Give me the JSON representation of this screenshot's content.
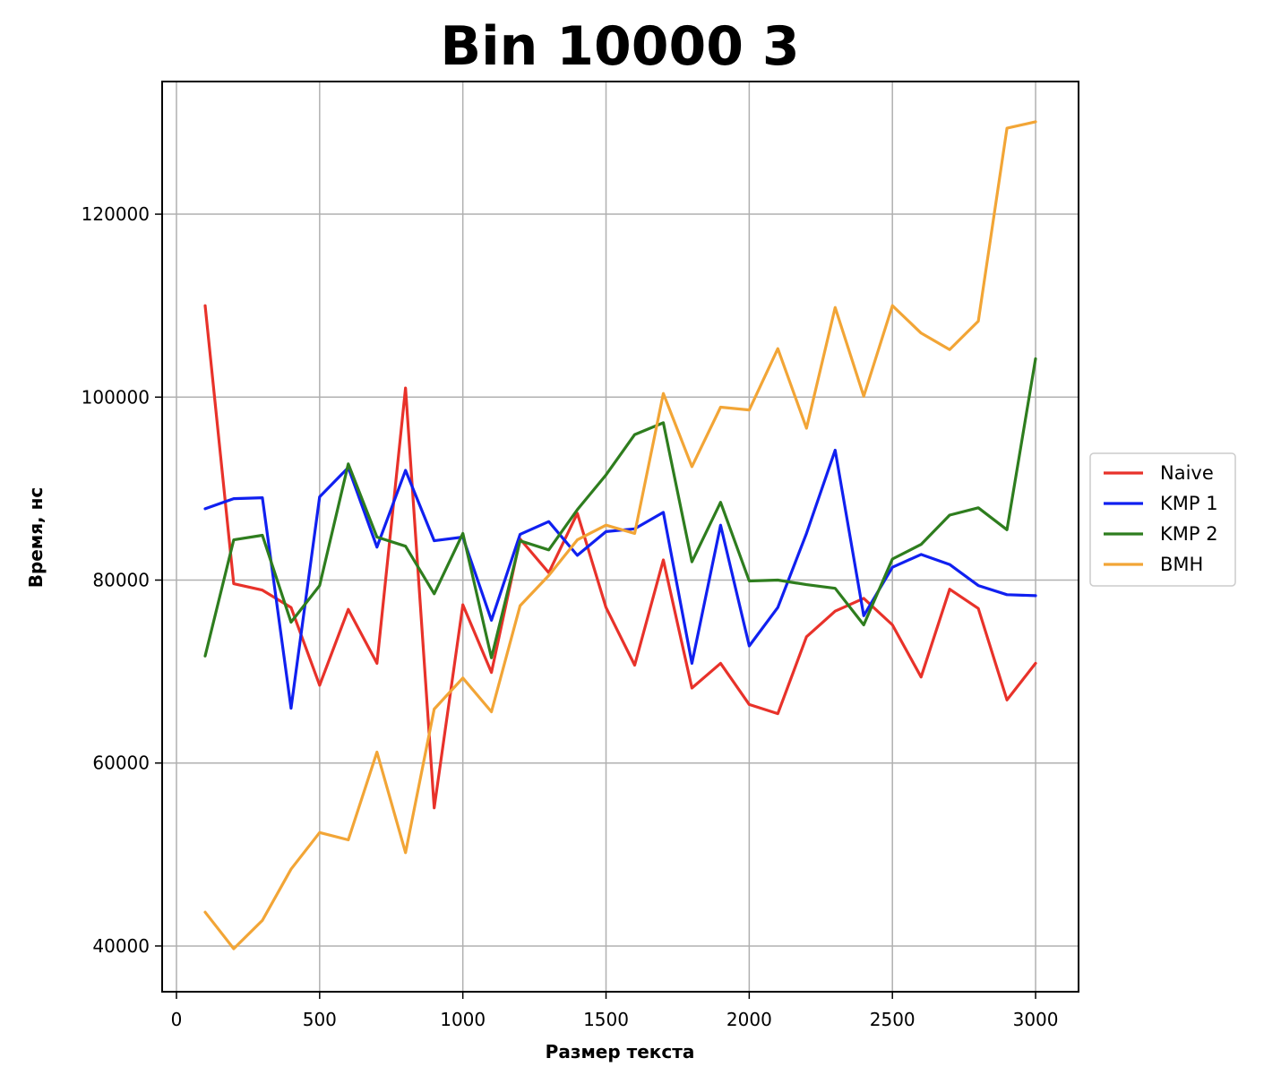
{
  "chart_data": {
    "type": "line",
    "title": "Bin 10000 3",
    "xlabel": "Размер текста",
    "ylabel": "Время, нс",
    "xlim": [
      -50,
      3150
    ],
    "ylim": [
      35000,
      134500
    ],
    "xticks": [
      0,
      500,
      1000,
      1500,
      2000,
      2500,
      3000
    ],
    "yticks": [
      40000,
      60000,
      80000,
      100000,
      120000
    ],
    "grid": true,
    "legend_position": "right-center",
    "x": [
      100,
      200,
      300,
      400,
      500,
      600,
      700,
      800,
      900,
      1000,
      1100,
      1200,
      1300,
      1400,
      1500,
      1600,
      1700,
      1800,
      1900,
      2000,
      2100,
      2200,
      2300,
      2400,
      2500,
      2600,
      2700,
      2800,
      2900,
      3000
    ],
    "series": [
      {
        "name": "Naive",
        "color": "#e8322a",
        "values": [
          110000,
          79600,
          78900,
          77000,
          68500,
          76800,
          70900,
          101000,
          55100,
          77300,
          69900,
          84500,
          80800,
          87300,
          77000,
          70700,
          82200,
          68200,
          70900,
          66400,
          65400,
          73800,
          76600,
          78000,
          75100,
          69400,
          79000,
          76900,
          66900,
          70900
        ]
      },
      {
        "name": "KMP 1",
        "color": "#1020f0",
        "values": [
          87800,
          88900,
          89000,
          66000,
          89100,
          92300,
          83600,
          92000,
          84300,
          84700,
          75600,
          85000,
          86400,
          82700,
          85300,
          85600,
          87400,
          70900,
          86000,
          72800,
          77000,
          85100,
          94200,
          76100,
          81400,
          82800,
          81700,
          79400,
          78400,
          78300
        ]
      },
      {
        "name": "KMP 2",
        "color": "#2e7d1e",
        "values": [
          71700,
          84400,
          84900,
          75400,
          79400,
          92700,
          84700,
          83700,
          78500,
          85100,
          71500,
          84300,
          83300,
          87700,
          91500,
          95900,
          97200,
          82000,
          88500,
          79900,
          80000,
          79500,
          79100,
          75100,
          82300,
          83900,
          87100,
          87900,
          85500,
          104200
        ]
      },
      {
        "name": "BMH",
        "color": "#f2a536",
        "values": [
          43700,
          39700,
          42800,
          48400,
          52400,
          51600,
          61200,
          50200,
          65900,
          69300,
          65600,
          77200,
          80500,
          84400,
          86000,
          85100,
          100400,
          92400,
          98900,
          98600,
          105300,
          96600,
          109800,
          100100,
          110000,
          107000,
          105200,
          108300,
          129400,
          130100
        ]
      }
    ]
  }
}
